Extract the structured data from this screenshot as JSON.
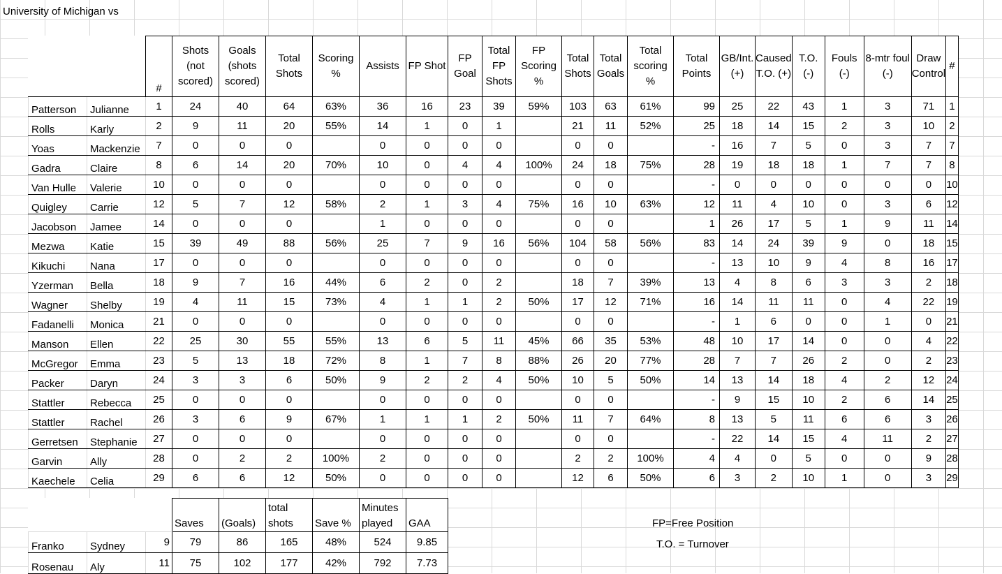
{
  "title": "University of Michigan vs",
  "headers": [
    "#",
    "Shots (not scored)",
    "Goals (shots scored)",
    "Total Shots",
    "Scoring %",
    "Assists",
    "FP Shot",
    "FP Goal",
    "Total FP Shots",
    "FP Scoring %",
    "Total Shots",
    "Total Goals",
    "Total scoring %",
    "Total Points",
    "GB/Int. (+)",
    "Caused T.O. (+)",
    "T.O. (-)",
    "Fouls (-)",
    "8-mtr foul (-)",
    "Draw Control",
    "#"
  ],
  "players": [
    [
      "Patterson",
      "Julianne",
      "1",
      "24",
      "40",
      "64",
      "63%",
      "36",
      "16",
      "23",
      "39",
      "59%",
      "103",
      "63",
      "61%",
      "99",
      "25",
      "22",
      "43",
      "1",
      "3",
      "71",
      "1"
    ],
    [
      "Rolls",
      "Karly",
      "2",
      "9",
      "11",
      "20",
      "55%",
      "14",
      "1",
      "0",
      "1",
      "",
      "21",
      "11",
      "52%",
      "25",
      "18",
      "14",
      "15",
      "2",
      "3",
      "10",
      "2"
    ],
    [
      "Yoas",
      "Mackenzie",
      "7",
      "0",
      "0",
      "0",
      "",
      "0",
      "0",
      "0",
      "0",
      "",
      "0",
      "0",
      "",
      "-",
      "16",
      "7",
      "5",
      "0",
      "3",
      "7",
      "7"
    ],
    [
      "Gadra",
      "Claire",
      "8",
      "6",
      "14",
      "20",
      "70%",
      "10",
      "0",
      "4",
      "4",
      "100%",
      "24",
      "18",
      "75%",
      "28",
      "19",
      "18",
      "18",
      "1",
      "7",
      "7",
      "8"
    ],
    [
      "Van Hulle",
      "Valerie",
      "10",
      "0",
      "0",
      "0",
      "",
      "0",
      "0",
      "0",
      "0",
      "",
      "0",
      "0",
      "",
      "-",
      "0",
      "0",
      "0",
      "0",
      "0",
      "0",
      "10"
    ],
    [
      "Quigley",
      "Carrie",
      "12",
      "5",
      "7",
      "12",
      "58%",
      "2",
      "1",
      "3",
      "4",
      "75%",
      "16",
      "10",
      "63%",
      "12",
      "11",
      "4",
      "10",
      "0",
      "3",
      "6",
      "12"
    ],
    [
      "Jacobson",
      "Jamee",
      "14",
      "0",
      "0",
      "0",
      "",
      "1",
      "0",
      "0",
      "0",
      "",
      "0",
      "0",
      "",
      "1",
      "26",
      "17",
      "5",
      "1",
      "9",
      "11",
      "14"
    ],
    [
      "Mezwa",
      "Katie",
      "15",
      "39",
      "49",
      "88",
      "56%",
      "25",
      "7",
      "9",
      "16",
      "56%",
      "104",
      "58",
      "56%",
      "83",
      "14",
      "24",
      "39",
      "9",
      "0",
      "18",
      "15"
    ],
    [
      "Kikuchi",
      "Nana",
      "17",
      "0",
      "0",
      "0",
      "",
      "0",
      "0",
      "0",
      "0",
      "",
      "0",
      "0",
      "",
      "-",
      "13",
      "10",
      "9",
      "4",
      "8",
      "16",
      "17"
    ],
    [
      "Yzerman",
      "Bella",
      "18",
      "9",
      "7",
      "16",
      "44%",
      "6",
      "2",
      "0",
      "2",
      "",
      "18",
      "7",
      "39%",
      "13",
      "4",
      "8",
      "6",
      "3",
      "3",
      "2",
      "18"
    ],
    [
      "Wagner",
      "Shelby",
      "19",
      "4",
      "11",
      "15",
      "73%",
      "4",
      "1",
      "1",
      "2",
      "50%",
      "17",
      "12",
      "71%",
      "16",
      "14",
      "11",
      "11",
      "0",
      "4",
      "22",
      "19"
    ],
    [
      "Fadanelli",
      "Monica",
      "21",
      "0",
      "0",
      "0",
      "",
      "0",
      "0",
      "0",
      "0",
      "",
      "0",
      "0",
      "",
      "-",
      "1",
      "6",
      "0",
      "0",
      "1",
      "0",
      "21"
    ],
    [
      "Manson",
      "Ellen",
      "22",
      "25",
      "30",
      "55",
      "55%",
      "13",
      "6",
      "5",
      "11",
      "45%",
      "66",
      "35",
      "53%",
      "48",
      "10",
      "17",
      "14",
      "0",
      "0",
      "4",
      "22"
    ],
    [
      "McGregor",
      "Emma",
      "23",
      "5",
      "13",
      "18",
      "72%",
      "8",
      "1",
      "7",
      "8",
      "88%",
      "26",
      "20",
      "77%",
      "28",
      "7",
      "7",
      "26",
      "2",
      "0",
      "2",
      "23"
    ],
    [
      "Packer",
      "Daryn",
      "24",
      "3",
      "3",
      "6",
      "50%",
      "9",
      "2",
      "2",
      "4",
      "50%",
      "10",
      "5",
      "50%",
      "14",
      "13",
      "14",
      "18",
      "4",
      "2",
      "12",
      "24"
    ],
    [
      "Stattler",
      "Rebecca",
      "25",
      "0",
      "0",
      "0",
      "",
      "0",
      "0",
      "0",
      "0",
      "",
      "0",
      "0",
      "",
      "-",
      "9",
      "15",
      "10",
      "2",
      "6",
      "14",
      "25"
    ],
    [
      "Stattler",
      "Rachel",
      "26",
      "3",
      "6",
      "9",
      "67%",
      "1",
      "1",
      "1",
      "2",
      "50%",
      "11",
      "7",
      "64%",
      "8",
      "13",
      "5",
      "11",
      "6",
      "6",
      "3",
      "26"
    ],
    [
      "Gerretsen",
      "Stephanie",
      "27",
      "0",
      "0",
      "0",
      "",
      "0",
      "0",
      "0",
      "0",
      "",
      "0",
      "0",
      "",
      "-",
      "22",
      "14",
      "15",
      "4",
      "11",
      "2",
      "27"
    ],
    [
      "Garvin",
      "Ally",
      "28",
      "0",
      "2",
      "2",
      "100%",
      "2",
      "0",
      "0",
      "0",
      "",
      "2",
      "2",
      "100%",
      "4",
      "4",
      "0",
      "5",
      "0",
      "0",
      "9",
      "28"
    ],
    [
      "Kaechele",
      "Celia",
      "29",
      "6",
      "6",
      "12",
      "50%",
      "0",
      "0",
      "0",
      "0",
      "",
      "12",
      "6",
      "50%",
      "6",
      "3",
      "2",
      "10",
      "1",
      "0",
      "3",
      "29"
    ]
  ],
  "goalie_headers": [
    "Saves",
    "(Goals)",
    "total shots",
    "Save %",
    "Minutes played",
    "GAA"
  ],
  "goalies": [
    [
      "Franko",
      "Sydney",
      "9",
      "79",
      "86",
      "165",
      "48%",
      "524",
      "9.85"
    ],
    [
      "Rosenau",
      "Aly",
      "11",
      "75",
      "102",
      "177",
      "42%",
      "792",
      "7.73"
    ]
  ],
  "legend": {
    "fp": "FP=Free Position",
    "to": "T.O. = Turnover"
  }
}
